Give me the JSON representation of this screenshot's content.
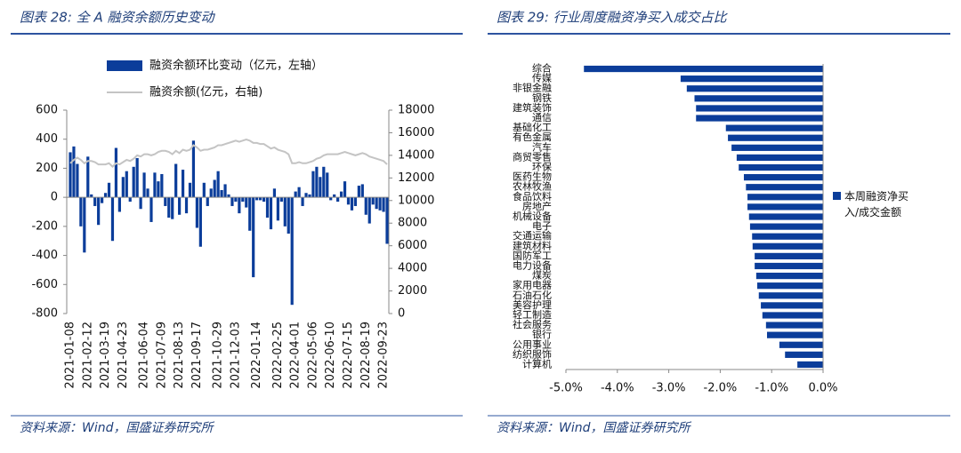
{
  "chart_data": [
    {
      "type": "combo",
      "title": "图表 28:  全 A 融资余额历史变动",
      "source": "资料来源：Wind，国盛证券研究所",
      "categories": [
        "2021-01-08",
        null,
        null,
        null,
        null,
        "2021-02-12",
        null,
        null,
        null,
        null,
        "2021-03-19",
        null,
        null,
        null,
        null,
        "2021-04-23",
        null,
        null,
        null,
        null,
        null,
        "2021-06-04",
        null,
        null,
        null,
        null,
        "2021-07-09",
        null,
        null,
        null,
        null,
        "2021-08-13",
        null,
        null,
        null,
        null,
        "2021-09-17",
        null,
        null,
        null,
        null,
        null,
        "2021-10-29",
        null,
        null,
        null,
        null,
        "2021-12-03",
        null,
        null,
        null,
        null,
        null,
        "2022-01-14",
        null,
        null,
        null,
        null,
        null,
        "2022-02-25",
        null,
        null,
        null,
        null,
        "2022-04-01",
        null,
        null,
        null,
        null,
        "2022-05-06",
        null,
        null,
        null,
        null,
        "2022-06-10",
        null,
        null,
        null,
        null,
        "2022-07-15",
        null,
        null,
        null,
        null,
        "2022-08-19",
        null,
        null,
        null,
        null,
        "2022-09-23",
        null
      ],
      "series": [
        {
          "name": "融资余额环比变动（亿元，左轴）",
          "type": "bar",
          "color": "#0b3d9a",
          "values": [
            310,
            350,
            230,
            -200,
            -380,
            280,
            20,
            -60,
            -190,
            -40,
            30,
            100,
            -300,
            340,
            -100,
            140,
            180,
            -30,
            210,
            270,
            -80,
            170,
            60,
            -170,
            170,
            110,
            160,
            -60,
            -140,
            -150,
            230,
            -120,
            190,
            -110,
            100,
            390,
            -210,
            -340,
            100,
            -60,
            60,
            120,
            180,
            50,
            90,
            20,
            -60,
            -30,
            -110,
            -30,
            -70,
            -230,
            -550,
            -20,
            -20,
            -30,
            -140,
            -220,
            60,
            -160,
            -30,
            -200,
            -250,
            -740,
            40,
            70,
            -60,
            30,
            20,
            180,
            210,
            140,
            210,
            170,
            -20,
            20,
            -30,
            40,
            110,
            -50,
            -90,
            -60,
            80,
            90,
            -120,
            -180,
            -50,
            -80,
            -90,
            -100,
            -320
          ]
        },
        {
          "name": "融资余额(亿元，右轴)",
          "type": "line",
          "axis": "y2",
          "color": "#c4c4c4",
          "values": [
            13300,
            13600,
            13800,
            13600,
            13300,
            13500,
            13500,
            13400,
            13200,
            13200,
            13200,
            13300,
            13000,
            13300,
            13200,
            13400,
            13600,
            13500,
            13700,
            14000,
            13900,
            14100,
            14100,
            14000,
            14100,
            14300,
            14400,
            14400,
            14300,
            14100,
            14400,
            14200,
            14500,
            14400,
            14500,
            14900,
            14700,
            14400,
            14500,
            14500,
            14600,
            14700,
            14900,
            14900,
            15000,
            15100,
            15200,
            15300,
            15200,
            15300,
            15400,
            15300,
            15100,
            15100,
            15000,
            15000,
            14800,
            14600,
            14700,
            14500,
            14400,
            14300,
            14100,
            13300,
            13300,
            13400,
            13300,
            13300,
            13400,
            13500,
            13700,
            13800,
            14000,
            14100,
            14100,
            14100,
            14100,
            14200,
            14300,
            14200,
            14100,
            14000,
            14100,
            14200,
            14100,
            13900,
            13800,
            13700,
            13600,
            13500,
            13200
          ]
        }
      ],
      "ylim": [
        -800,
        600
      ],
      "yticks": [
        600,
        400,
        200,
        0,
        -200,
        -400,
        -600,
        -800
      ],
      "y2lim": [
        0,
        18000
      ],
      "y2ticks": [
        18000,
        16000,
        14000,
        12000,
        10000,
        8000,
        6000,
        4000,
        2000,
        0
      ]
    },
    {
      "type": "barh",
      "title": "图表 29:  行业周度融资净买入成交占比",
      "source": "资料来源：Wind，国盛证券研究所",
      "categories": [
        "综合",
        "传媒",
        "非银金融",
        "钢铁",
        "建筑装饰",
        "通信",
        "基础化工",
        "有色金属",
        "汽车",
        "商贸零售",
        "环保",
        "医药生物",
        "农林牧渔",
        "食品饮料",
        "房地产",
        "机械设备",
        "电子",
        "交通运输",
        "建筑材料",
        "国防军工",
        "电力设备",
        "煤炭",
        "家用电器",
        "石油石化",
        "美容护理",
        "轻工制造",
        "社会服务",
        "银行",
        "公用事业",
        "纺织服饰",
        "计算机"
      ],
      "series": [
        {
          "name": "本周融资净买入/成交金额",
          "color": "#0b3d9a",
          "values": [
            -4.65,
            -2.77,
            -2.65,
            -2.5,
            -2.47,
            -2.47,
            -1.89,
            -1.85,
            -1.78,
            -1.68,
            -1.64,
            -1.54,
            -1.5,
            -1.47,
            -1.47,
            -1.44,
            -1.42,
            -1.38,
            -1.37,
            -1.33,
            -1.33,
            -1.3,
            -1.28,
            -1.25,
            -1.21,
            -1.18,
            -1.11,
            -1.09,
            -0.85,
            -0.74,
            -0.5
          ]
        }
      ],
      "xlim": [
        -5,
        0
      ],
      "xticks": [
        {
          "value": -5,
          "label": "-5.0%"
        },
        {
          "value": -4,
          "label": "-4.0%"
        },
        {
          "value": -3,
          "label": "-3.0%"
        },
        {
          "value": -2,
          "label": "-2.0%"
        },
        {
          "value": -1,
          "label": "-1.0%"
        },
        {
          "value": 0,
          "label": "0.0%"
        }
      ]
    }
  ]
}
